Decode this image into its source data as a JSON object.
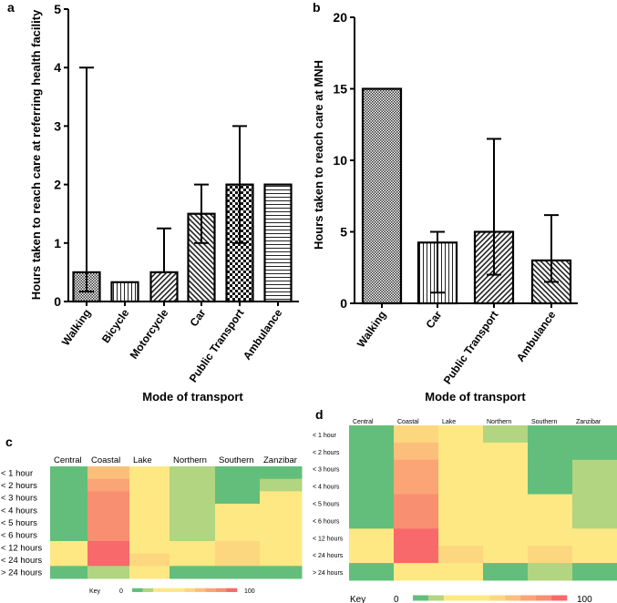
{
  "panel_labels": {
    "a": "a",
    "b": "b",
    "c": "c",
    "d": "d"
  },
  "chart_data": [
    {
      "type": "bar",
      "panel": "a",
      "categories": [
        "Walking",
        "Bicycle",
        "Motorcycle",
        "Car",
        "Public Transport",
        "Ambulance"
      ],
      "values": [
        0.5,
        0.33,
        0.5,
        1.5,
        2,
        2
      ],
      "error_low": [
        0.17,
        null,
        0.5,
        1,
        1,
        null
      ],
      "error_high": [
        4,
        null,
        1.25,
        2,
        3,
        null
      ],
      "patterns": [
        "dots",
        "vertical",
        "diag",
        "diag2",
        "checker",
        "horizontal"
      ],
      "xlabel": "Mode of transport",
      "ylabel": "Hours taken to reach care at referring health facility",
      "ylim": [
        0,
        5
      ],
      "yticks": [
        "0",
        "1",
        "2",
        "3",
        "4",
        "5"
      ]
    },
    {
      "type": "bar",
      "panel": "b",
      "categories": [
        "Walking",
        "Car",
        "Public Transport",
        "Ambulance"
      ],
      "values": [
        15,
        4.25,
        5,
        3
      ],
      "error_low": [
        null,
        0.75,
        2,
        1.5
      ],
      "error_high": [
        null,
        5,
        11.5,
        6.17
      ],
      "patterns": [
        "dots",
        "vertical",
        "diag",
        "diag2"
      ],
      "xlabel": "Mode of transport",
      "ylabel": "Hours taken to reach care at MNH",
      "ylim": [
        0,
        20
      ],
      "yticks": [
        "0",
        "5",
        "10",
        "15",
        "20"
      ]
    },
    {
      "type": "heatmap",
      "panel": "c",
      "columns": [
        "Central",
        "Coastal",
        "Lake",
        "Northern",
        "Southern",
        "Zanzibar"
      ],
      "rows": [
        "< 1 hour",
        "< 2 hours",
        "< 3 hours",
        "< 4 hours",
        "< 5 hours",
        "< 6 hours",
        "< 12 hours",
        "< 24 hours",
        "> 24 hours"
      ],
      "values": [
        [
          0,
          70,
          40,
          10,
          0,
          0
        ],
        [
          0,
          80,
          40,
          10,
          0,
          10
        ],
        [
          0,
          85,
          40,
          10,
          0,
          40
        ],
        [
          0,
          90,
          40,
          10,
          40,
          40
        ],
        [
          0,
          90,
          40,
          10,
          40,
          40
        ],
        [
          0,
          92,
          40,
          10,
          40,
          40
        ],
        [
          40,
          97,
          45,
          40,
          55,
          40
        ],
        [
          40,
          100,
          60,
          40,
          60,
          40
        ],
        [
          0,
          10,
          40,
          0,
          0,
          0
        ]
      ],
      "key": {
        "label": "Key",
        "min": "0",
        "max": "100"
      }
    },
    {
      "type": "heatmap",
      "panel": "d",
      "columns": [
        "Central",
        "Coastal",
        "Lake",
        "Northern",
        "Southern",
        "Zanzibar"
      ],
      "rows": [
        "< 1 hour",
        "< 2 hours",
        "< 3 hours",
        "< 4 hours",
        "< 5 hours",
        "< 6 hours",
        "< 12 hours",
        "< 24 hours",
        "> 24 hours"
      ],
      "values": [
        [
          0,
          60,
          40,
          10,
          0,
          0
        ],
        [
          0,
          70,
          40,
          40,
          0,
          0
        ],
        [
          0,
          80,
          40,
          40,
          0,
          10
        ],
        [
          0,
          82,
          40,
          40,
          0,
          10
        ],
        [
          0,
          88,
          40,
          40,
          40,
          10
        ],
        [
          0,
          90,
          40,
          40,
          40,
          10
        ],
        [
          40,
          97,
          42,
          40,
          50,
          40
        ],
        [
          40,
          100,
          55,
          40,
          58,
          40
        ],
        [
          0,
          40,
          42,
          0,
          10,
          0
        ]
      ],
      "key": {
        "label": "Key",
        "min": "0",
        "max": "100"
      }
    }
  ],
  "colors": {
    "scale": [
      "#63be7b",
      "#b1d580",
      "#fee883",
      "#fee883",
      "#fee883",
      "#fee883",
      "#fdd77f",
      "#fcbf7b",
      "#fba476",
      "#f98f71",
      "#f8696b"
    ]
  }
}
